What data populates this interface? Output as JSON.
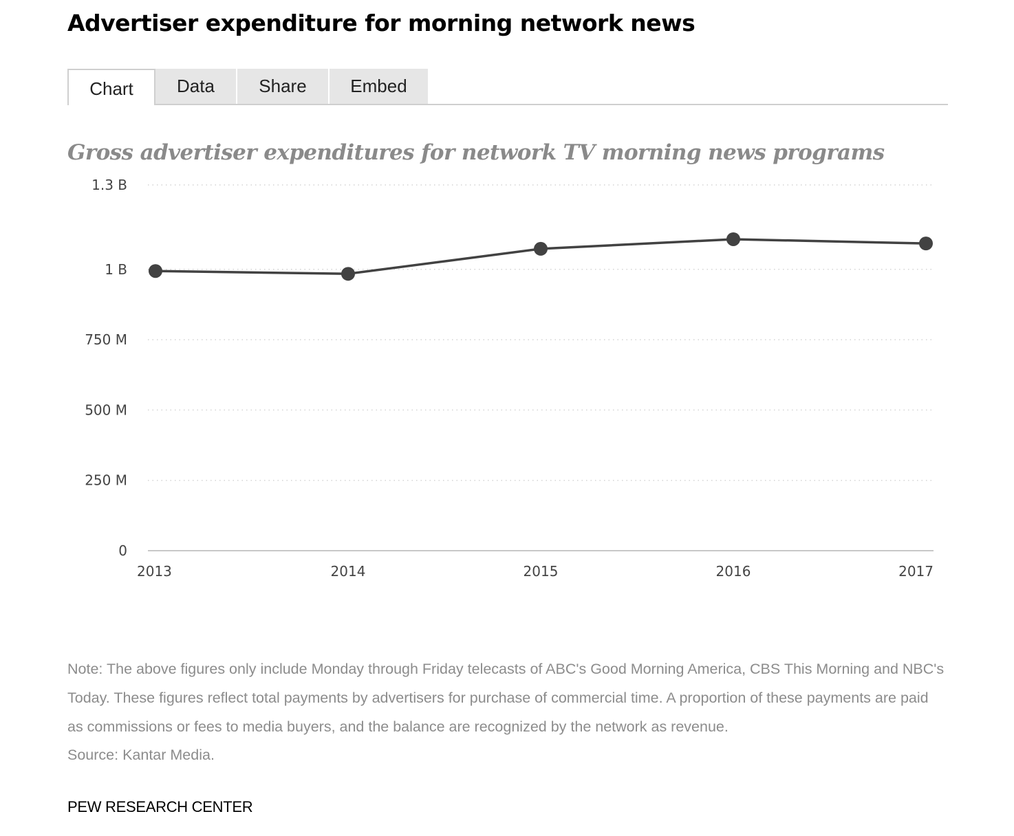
{
  "header": {
    "title": "Advertiser expenditure for morning network news"
  },
  "tabs": [
    {
      "label": "Chart",
      "active": true
    },
    {
      "label": "Data",
      "active": false
    },
    {
      "label": "Share",
      "active": false
    },
    {
      "label": "Embed",
      "active": false
    }
  ],
  "chart_data": {
    "type": "line",
    "title": "Gross advertiser expenditures for network TV morning news programs",
    "xlabel": "",
    "ylabel": "",
    "x": [
      "2013",
      "2014",
      "2015",
      "2016",
      "2017"
    ],
    "series": [
      {
        "values": [
          994000000,
          984000000,
          1073000000,
          1107000000,
          1092000000
        ]
      }
    ],
    "ylim": [
      0,
      1300000000
    ],
    "yticks": [
      0,
      250000000,
      500000000,
      750000000,
      1000000000,
      1300000000
    ],
    "ytick_labels": [
      "0",
      "250 M",
      "500 M",
      "750 M",
      "1 B",
      "1.3 B"
    ],
    "grid": true,
    "legend": "none",
    "line_color": "#424242"
  },
  "footer": {
    "note": "Note: The above figures only include Monday through Friday telecasts of ABC's Good Morning America, CBS This Morning and NBC's Today. These figures reflect total payments by advertisers for purchase of commercial time. A proportion of these payments are paid as commissions or fees to media buyers, and the balance are recognized by the network as revenue.",
    "source": "Source: Kantar Media.",
    "org": "PEW RESEARCH CENTER"
  }
}
